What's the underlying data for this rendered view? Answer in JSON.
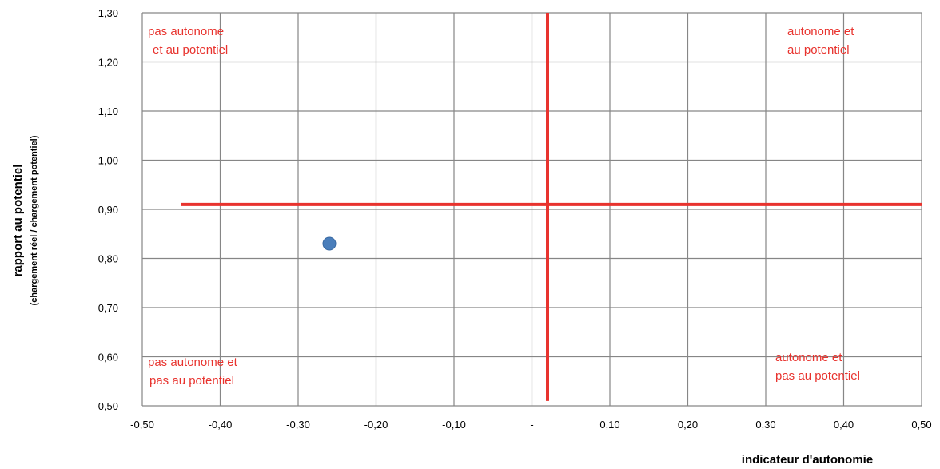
{
  "chart_data": {
    "type": "scatter",
    "xlabel": "indicateur d'autonomie",
    "ylabel": "rapport au potentiel",
    "ylabel_sub": "(chargement réel / chargement potentiel)",
    "xlim": [
      -0.5,
      0.5
    ],
    "ylim": [
      0.5,
      1.3
    ],
    "grid": true,
    "x_ticks": [
      {
        "value": -0.5,
        "label": "-0,50"
      },
      {
        "value": -0.4,
        "label": "-0,40"
      },
      {
        "value": -0.3,
        "label": "-0,30"
      },
      {
        "value": -0.2,
        "label": "-0,20"
      },
      {
        "value": -0.1,
        "label": "-0,10"
      },
      {
        "value": 0.0,
        "label": "-"
      },
      {
        "value": 0.1,
        "label": "0,10"
      },
      {
        "value": 0.2,
        "label": "0,20"
      },
      {
        "value": 0.3,
        "label": "0,30"
      },
      {
        "value": 0.4,
        "label": "0,40"
      },
      {
        "value": 0.5,
        "label": "0,50"
      }
    ],
    "y_ticks": [
      {
        "value": 0.5,
        "label": "0,50"
      },
      {
        "value": 0.6,
        "label": "0,60"
      },
      {
        "value": 0.7,
        "label": "0,70"
      },
      {
        "value": 0.8,
        "label": "0,80"
      },
      {
        "value": 0.9,
        "label": "0,90"
      },
      {
        "value": 1.0,
        "label": "1,00"
      },
      {
        "value": 1.1,
        "label": "1,10"
      },
      {
        "value": 1.2,
        "label": "1,20"
      },
      {
        "value": 1.3,
        "label": "1,30"
      }
    ],
    "points": [
      {
        "x": -0.26,
        "y": 0.83
      }
    ],
    "reference_lines": {
      "horizontal": {
        "y": 0.91,
        "x_from": -0.45,
        "x_to": 0.5
      },
      "vertical": {
        "x": 0.02,
        "y_from": 0.51,
        "y_to": 1.3
      }
    },
    "quadrant_labels": [
      {
        "id": "top-left",
        "lines": [
          "pas autonome",
          "et au potentiel"
        ]
      },
      {
        "id": "top-right",
        "lines": [
          "autonome et",
          "au potentiel"
        ]
      },
      {
        "id": "bottom-left",
        "lines": [
          "pas autonome et",
          "pas au potentiel"
        ]
      },
      {
        "id": "bottom-right",
        "lines": [
          "autonome et",
          "pas au potentiel"
        ]
      }
    ],
    "colors": {
      "point": "#4a7ebb",
      "point_stroke": "#3a6aa3",
      "reference": "#e8332e",
      "quadrant_text": "#e8332e",
      "grid": "#868686"
    }
  }
}
